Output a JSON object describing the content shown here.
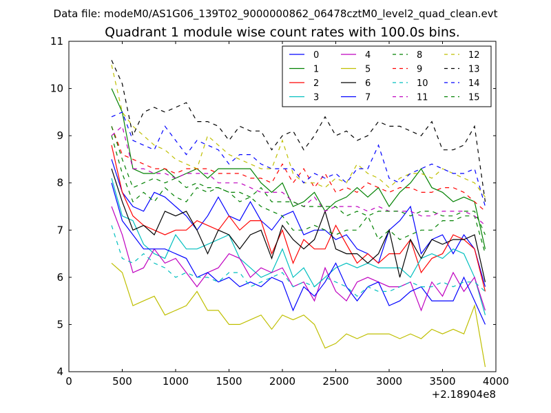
{
  "header": {
    "datafile": "Data file: modeM0/AS1G06_139T02_9000000862_06478cztM0_level2_quad_clean.evt"
  },
  "chart_data": {
    "type": "line",
    "title": "Quadrant 1 module wise count rates with 100.0s bins.",
    "xlabel": "",
    "ylabel": "",
    "x_offset_label": "+2.18904e8",
    "xlim": [
      0,
      4000
    ],
    "ylim": [
      4,
      11
    ],
    "xticks": [
      0,
      500,
      1000,
      1500,
      2000,
      2500,
      3000,
      3500,
      4000
    ],
    "yticks": [
      4,
      5,
      6,
      7,
      8,
      9,
      10,
      11
    ],
    "grid": false,
    "legend_position": "top-right",
    "x": [
      400,
      500,
      600,
      700,
      800,
      900,
      1000,
      1100,
      1200,
      1300,
      1400,
      1500,
      1600,
      1700,
      1800,
      1900,
      2000,
      2100,
      2200,
      2300,
      2400,
      2500,
      2600,
      2700,
      2800,
      2900,
      3000,
      3100,
      3200,
      3300,
      3400,
      3500,
      3600,
      3700,
      3800,
      3900
    ],
    "series": [
      {
        "name": "0",
        "color": "#0000ff",
        "dash": "solid",
        "values": [
          8.5,
          7.8,
          7.5,
          7.4,
          7.8,
          7.7,
          7.5,
          7.3,
          7.0,
          7.3,
          7.7,
          7.3,
          7.2,
          7.6,
          7.2,
          7.0,
          7.3,
          7.4,
          6.9,
          7.0,
          7.0,
          6.8,
          6.9,
          6.6,
          6.5,
          6.3,
          7.0,
          7.2,
          7.5,
          6.5,
          6.8,
          6.9,
          6.5,
          6.9,
          6.6,
          5.8
        ]
      },
      {
        "name": "1",
        "color": "#008000",
        "dash": "solid",
        "values": [
          10.0,
          9.5,
          8.3,
          8.2,
          8.2,
          8.3,
          8.1,
          8.2,
          8.3,
          8.1,
          8.3,
          8.3,
          8.3,
          8.3,
          8.0,
          7.8,
          8.0,
          7.5,
          7.6,
          7.8,
          7.4,
          7.6,
          7.7,
          7.9,
          7.7,
          7.9,
          7.5,
          7.8,
          8.0,
          8.3,
          7.9,
          7.8,
          7.6,
          7.7,
          7.6,
          6.6
        ]
      },
      {
        "name": "2",
        "color": "#ff0000",
        "dash": "solid",
        "values": [
          8.8,
          7.8,
          7.3,
          7.1,
          7.0,
          6.9,
          7.0,
          7.0,
          7.2,
          7.1,
          7.0,
          7.3,
          7.0,
          7.2,
          7.2,
          6.5,
          7.0,
          6.3,
          6.8,
          6.6,
          6.6,
          7.1,
          6.7,
          6.3,
          6.5,
          6.3,
          6.5,
          6.5,
          6.8,
          6.1,
          6.4,
          6.5,
          6.9,
          6.8,
          6.6,
          5.7
        ]
      },
      {
        "name": "3",
        "color": "#00bfbf",
        "dash": "solid",
        "values": [
          8.1,
          7.3,
          7.2,
          6.7,
          6.5,
          6.4,
          6.9,
          6.6,
          6.6,
          6.7,
          6.8,
          6.9,
          6.4,
          6.2,
          6.0,
          6.1,
          6.6,
          6.0,
          6.2,
          5.8,
          6.0,
          6.2,
          6.3,
          6.2,
          6.3,
          6.2,
          6.2,
          6.2,
          6.0,
          6.4,
          6.5,
          6.4,
          6.6,
          6.5,
          6.0,
          5.2
        ]
      },
      {
        "name": "4",
        "color": "#bf00bf",
        "dash": "solid",
        "values": [
          7.5,
          6.9,
          6.1,
          6.2,
          6.6,
          6.3,
          6.4,
          6.1,
          5.8,
          6.1,
          6.2,
          6.5,
          6.4,
          6.0,
          6.2,
          6.1,
          6.2,
          5.8,
          5.9,
          5.5,
          6.2,
          5.7,
          5.5,
          5.9,
          6.0,
          5.9,
          5.8,
          5.8,
          5.9,
          5.3,
          5.9,
          5.6,
          6.1,
          5.7,
          6.0,
          5.3
        ]
      },
      {
        "name": "5",
        "color": "#bfbf00",
        "dash": "solid",
        "values": [
          6.3,
          6.1,
          5.4,
          5.5,
          5.6,
          5.2,
          5.3,
          5.4,
          5.7,
          5.3,
          5.3,
          5.0,
          5.0,
          5.1,
          5.2,
          4.9,
          5.2,
          5.1,
          5.2,
          5.0,
          4.5,
          4.6,
          4.8,
          4.7,
          4.8,
          4.8,
          4.8,
          4.7,
          4.8,
          4.7,
          4.9,
          4.8,
          4.9,
          4.8,
          5.4,
          4.1
        ]
      },
      {
        "name": "6",
        "color": "#000000",
        "dash": "solid",
        "values": [
          8.3,
          7.6,
          7.0,
          7.1,
          6.9,
          7.4,
          7.3,
          7.4,
          7.0,
          6.5,
          7.0,
          6.9,
          6.6,
          6.9,
          7.0,
          6.4,
          7.1,
          6.8,
          6.6,
          6.8,
          7.4,
          6.6,
          6.5,
          6.5,
          6.3,
          6.5,
          7.0,
          6.0,
          6.8,
          6.4,
          6.8,
          6.7,
          6.8,
          6.8,
          6.9,
          5.9
        ]
      },
      {
        "name": "7",
        "color": "#0000ff",
        "dash": "solid",
        "values": [
          8.0,
          7.2,
          6.9,
          6.6,
          6.6,
          6.6,
          6.5,
          6.4,
          6.0,
          6.1,
          5.9,
          6.0,
          5.8,
          5.9,
          5.8,
          6.0,
          5.9,
          5.3,
          5.8,
          5.6,
          5.9,
          6.3,
          5.8,
          5.5,
          5.8,
          5.9,
          5.4,
          5.5,
          5.7,
          5.8,
          5.5,
          5.5,
          5.5,
          6.0,
          5.5,
          5.0
        ]
      },
      {
        "name": "8",
        "color": "#008000",
        "dash": "dashed",
        "values": [
          9.0,
          8.2,
          7.6,
          7.8,
          7.6,
          7.9,
          7.7,
          7.6,
          7.9,
          7.8,
          7.9,
          7.8,
          7.6,
          7.7,
          7.5,
          7.4,
          7.3,
          7.0,
          7.0,
          7.1,
          7.0,
          6.9,
          7.0,
          7.0,
          7.3,
          6.8,
          7.0,
          6.8,
          6.9,
          7.0,
          7.0,
          7.2,
          7.2,
          7.3,
          7.3,
          6.5
        ]
      },
      {
        "name": "9",
        "color": "#ff0000",
        "dash": "dashed",
        "values": [
          9.2,
          8.6,
          8.5,
          8.4,
          8.3,
          8.3,
          8.2,
          8.3,
          8.3,
          8.3,
          8.2,
          8.2,
          8.2,
          8.1,
          8.1,
          8.0,
          8.4,
          8.0,
          8.3,
          7.9,
          8.2,
          7.8,
          7.9,
          7.8,
          8.0,
          7.9,
          7.8,
          7.9,
          7.9,
          7.8,
          7.8,
          7.9,
          7.9,
          7.8,
          7.6,
          7.4
        ]
      },
      {
        "name": "10",
        "color": "#00bfbf",
        "dash": "dashed",
        "values": [
          7.1,
          6.4,
          6.3,
          6.5,
          6.3,
          6.2,
          6.0,
          6.1,
          6.0,
          6.0,
          5.9,
          6.1,
          6.1,
          5.8,
          5.9,
          6.0,
          6.1,
          5.8,
          5.9,
          5.8,
          6.0,
          5.9,
          5.8,
          5.6,
          5.8,
          5.7,
          5.7,
          5.8,
          5.9,
          5.8,
          5.8,
          5.9,
          5.8,
          5.9,
          5.9,
          5.7
        ]
      },
      {
        "name": "11",
        "color": "#bf00bf",
        "dash": "dashed",
        "values": [
          9.0,
          9.2,
          8.3,
          8.3,
          8.2,
          8.2,
          8.1,
          8.2,
          8.2,
          8.2,
          8.0,
          8.0,
          8.0,
          7.9,
          7.8,
          7.8,
          7.8,
          7.6,
          7.5,
          7.7,
          7.4,
          7.5,
          7.5,
          7.5,
          7.4,
          7.5,
          7.4,
          7.4,
          7.4,
          7.3,
          7.3,
          7.4,
          7.4,
          7.4,
          7.3,
          7.1
        ]
      },
      {
        "name": "12",
        "color": "#bfbf00",
        "dash": "dashed",
        "values": [
          10.5,
          9.5,
          9.2,
          9.0,
          8.8,
          8.7,
          8.5,
          8.4,
          8.3,
          9.0,
          8.8,
          8.6,
          8.5,
          8.4,
          8.3,
          8.3,
          8.9,
          8.2,
          8.0,
          8.0,
          7.9,
          8.1,
          8.0,
          8.4,
          8.2,
          8.1,
          7.9,
          8.1,
          8.2,
          8.2,
          8.1,
          8.3,
          8.2,
          8.1,
          8.0,
          7.7
        ]
      },
      {
        "name": "13",
        "color": "#000000",
        "dash": "dashed",
        "values": [
          10.6,
          10.1,
          9.0,
          9.5,
          9.6,
          9.5,
          9.6,
          9.7,
          9.3,
          9.3,
          9.2,
          8.9,
          9.2,
          9.1,
          9.1,
          8.7,
          9.0,
          9.1,
          8.7,
          9.0,
          9.4,
          9.0,
          9.1,
          8.9,
          9.0,
          9.3,
          9.2,
          9.2,
          9.1,
          9.0,
          9.3,
          8.7,
          8.7,
          8.8,
          9.2,
          7.6
        ]
      },
      {
        "name": "14",
        "color": "#0000ff",
        "dash": "dashed",
        "values": [
          9.4,
          9.5,
          8.9,
          8.8,
          8.7,
          9.2,
          8.9,
          8.6,
          8.9,
          8.8,
          8.7,
          8.4,
          8.6,
          8.6,
          8.4,
          8.3,
          8.3,
          8.3,
          8.0,
          8.2,
          8.1,
          8.2,
          8.0,
          8.3,
          8.3,
          8.8,
          8.1,
          8.0,
          8.2,
          8.3,
          8.4,
          8.3,
          8.2,
          8.2,
          8.3,
          7.5
        ]
      },
      {
        "name": "15",
        "color": "#008000",
        "dash": "dashed",
        "values": [
          9.2,
          8.5,
          7.9,
          8.0,
          8.1,
          8.0,
          8.1,
          7.9,
          8.0,
          7.9,
          7.9,
          7.8,
          7.8,
          7.7,
          7.9,
          7.6,
          7.6,
          7.6,
          7.5,
          7.5,
          7.5,
          7.5,
          7.3,
          7.4,
          7.3,
          7.4,
          7.4,
          7.4,
          7.3,
          7.4,
          7.4,
          7.3,
          7.3,
          7.4,
          7.4,
          6.9
        ]
      }
    ]
  }
}
